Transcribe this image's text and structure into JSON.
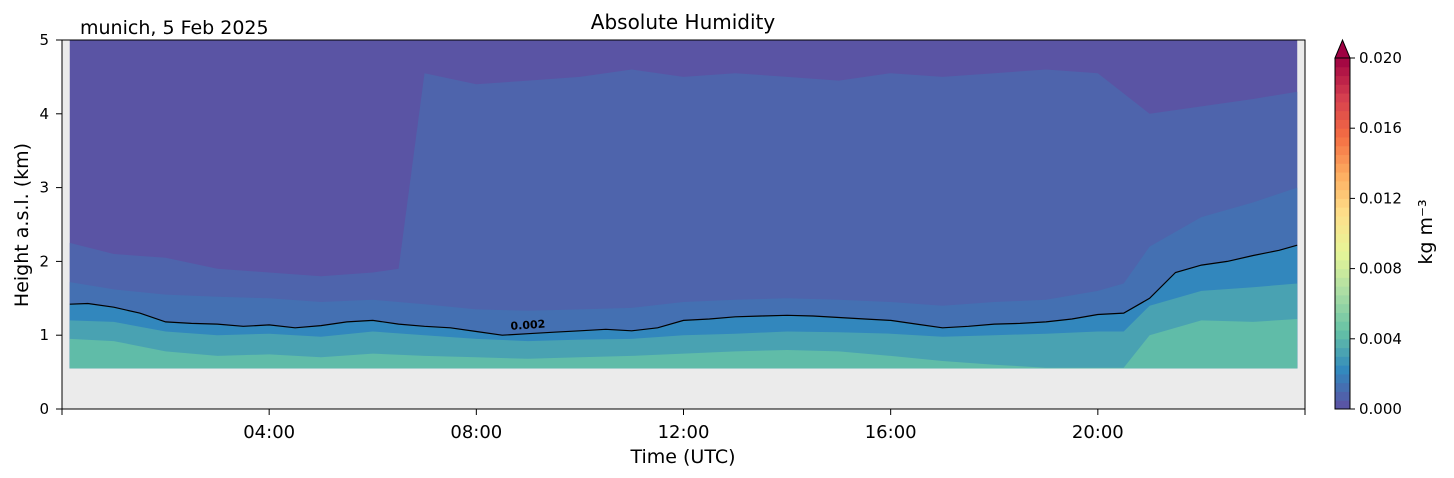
{
  "chart_data": {
    "type": "heatmap",
    "title": "Absolute Humidity",
    "subtitle": "munich, 5 Feb 2025",
    "xlabel": "Time (UTC)",
    "ylabel": "Height a.s.l. (km)",
    "xlim": [
      0,
      24
    ],
    "ylim": [
      0,
      5
    ],
    "x_ticks": [
      {
        "value": 0,
        "label": ""
      },
      {
        "value": 4,
        "label": "04:00"
      },
      {
        "value": 8,
        "label": "08:00"
      },
      {
        "value": 12,
        "label": "12:00"
      },
      {
        "value": 16,
        "label": "16:00"
      },
      {
        "value": 20,
        "label": "20:00"
      },
      {
        "value": 24,
        "label": ""
      }
    ],
    "y_ticks": [
      {
        "value": 0,
        "label": "0"
      },
      {
        "value": 1,
        "label": "1"
      },
      {
        "value": 2,
        "label": "2"
      },
      {
        "value": 3,
        "label": "3"
      },
      {
        "value": 4,
        "label": "4"
      },
      {
        "value": 5,
        "label": "5"
      }
    ],
    "data_bottom_km": 0.55,
    "colorbar": {
      "label": "kg m⁻³",
      "min": 0.0,
      "max": 0.02,
      "ticks": [
        {
          "value": 0.0,
          "label": "0.000"
        },
        {
          "value": 0.004,
          "label": "0.004"
        },
        {
          "value": 0.008,
          "label": "0.008"
        },
        {
          "value": 0.012,
          "label": "0.012"
        },
        {
          "value": 0.016,
          "label": "0.016"
        },
        {
          "value": 0.02,
          "label": "0.020"
        }
      ],
      "colors": [
        "#5e4fa2",
        "#3288bd",
        "#66c2a5",
        "#abdda4",
        "#e6f598",
        "#fee08b",
        "#fdae61",
        "#f46d43",
        "#d53e4f",
        "#9e0142"
      ],
      "extend": "max"
    },
    "contour": {
      "label": "0.002",
      "level": 0.002,
      "label_time_h": 9.0,
      "x": [
        0,
        0.5,
        1,
        1.5,
        2,
        2.5,
        3,
        3.5,
        4,
        4.5,
        5,
        5.5,
        6,
        6.5,
        7,
        7.5,
        8,
        8.5,
        9,
        9.5,
        10,
        10.5,
        11,
        11.5,
        12,
        12.5,
        13,
        13.5,
        14,
        14.5,
        15,
        15.5,
        16,
        16.5,
        17,
        17.5,
        18,
        18.5,
        19,
        19.5,
        20,
        20.5,
        21,
        21.5,
        22,
        22.5,
        23,
        23.5,
        24
      ],
      "y": [
        1.42,
        1.43,
        1.38,
        1.3,
        1.18,
        1.16,
        1.15,
        1.12,
        1.14,
        1.1,
        1.13,
        1.18,
        1.2,
        1.15,
        1.12,
        1.1,
        1.05,
        1.0,
        1.02,
        1.04,
        1.06,
        1.08,
        1.06,
        1.1,
        1.2,
        1.22,
        1.25,
        1.26,
        1.27,
        1.26,
        1.24,
        1.22,
        1.2,
        1.15,
        1.1,
        1.12,
        1.15,
        1.16,
        1.18,
        1.22,
        1.28,
        1.3,
        1.5,
        1.85,
        1.95,
        2.0,
        2.08,
        2.15,
        2.22
      ]
    },
    "isolines": [
      {
        "level": 0.0005,
        "x": [
          0,
          1,
          2,
          3,
          4,
          5,
          6,
          6.5,
          7,
          8,
          9,
          10,
          11,
          12,
          13,
          14,
          15,
          16,
          17,
          18,
          19,
          20,
          21,
          22,
          23,
          24
        ],
        "y": [
          2.25,
          2.1,
          2.05,
          1.9,
          1.85,
          1.8,
          1.85,
          1.9,
          4.55,
          4.4,
          4.45,
          4.5,
          4.6,
          4.5,
          4.55,
          4.5,
          4.45,
          4.55,
          4.5,
          4.55,
          4.6,
          4.55,
          4.0,
          4.1,
          4.2,
          4.3
        ]
      },
      {
        "level": 0.001,
        "x": [
          0,
          1,
          2,
          3,
          4,
          5,
          6,
          7,
          8,
          9,
          10,
          11,
          12,
          13,
          14,
          15,
          16,
          17,
          18,
          19,
          20,
          20.5,
          21,
          22,
          23,
          24
        ],
        "y": [
          1.72,
          1.62,
          1.55,
          1.52,
          1.5,
          1.45,
          1.48,
          1.42,
          1.35,
          1.33,
          1.35,
          1.37,
          1.45,
          1.48,
          1.5,
          1.48,
          1.45,
          1.4,
          1.45,
          1.48,
          1.6,
          1.7,
          2.2,
          2.6,
          2.8,
          3.0
        ]
      },
      {
        "level": 0.003,
        "x": [
          0,
          1,
          2,
          3,
          4,
          5,
          6,
          7,
          8,
          9,
          10,
          11,
          12,
          13,
          14,
          15,
          16,
          17,
          18,
          19,
          20,
          20.5,
          21,
          22,
          23,
          24
        ],
        "y": [
          1.2,
          1.18,
          1.05,
          1.0,
          1.02,
          0.98,
          1.05,
          1.0,
          0.95,
          0.92,
          0.94,
          0.95,
          1.0,
          1.02,
          1.05,
          1.04,
          1.02,
          0.98,
          1.0,
          1.02,
          1.05,
          1.05,
          1.4,
          1.6,
          1.65,
          1.7
        ]
      },
      {
        "level": 0.004,
        "x": [
          0,
          1,
          2,
          3,
          4,
          5,
          6,
          7,
          8,
          9,
          10,
          11,
          12,
          13,
          14,
          15,
          16,
          17,
          18,
          19,
          20,
          20.5,
          21,
          22,
          23,
          24
        ],
        "y": [
          0.95,
          0.92,
          0.78,
          0.72,
          0.74,
          0.7,
          0.75,
          0.72,
          0.7,
          0.68,
          0.7,
          0.72,
          0.75,
          0.78,
          0.8,
          0.78,
          0.72,
          0.65,
          0.6,
          0.56,
          0.56,
          0.56,
          1.0,
          1.2,
          1.18,
          1.22
        ]
      }
    ]
  }
}
